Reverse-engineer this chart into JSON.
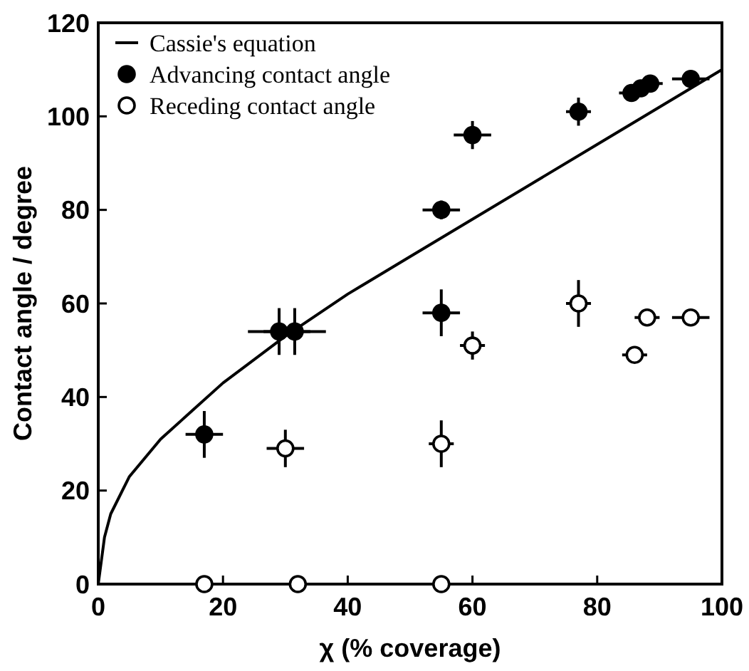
{
  "chart_data": {
    "type": "scatter",
    "xlabel": "χ  (% coverage)",
    "ylabel": "Contact angle / degree",
    "xlim": [
      0,
      100
    ],
    "ylim": [
      0,
      120
    ],
    "xticks": [
      0,
      20,
      40,
      60,
      80,
      100
    ],
    "yticks": [
      0,
      20,
      40,
      60,
      80,
      100,
      120
    ],
    "grid": false,
    "legend": "top left",
    "series": [
      {
        "name": "Cassie's equation",
        "type": "line",
        "color": "#000000",
        "marker": "none",
        "x": [
          0,
          1,
          2,
          5,
          10,
          15,
          20,
          30,
          40,
          50,
          60,
          70,
          80,
          90,
          100
        ],
        "values": [
          0,
          10,
          15,
          23,
          31,
          37,
          43,
          53,
          62,
          70,
          78,
          86,
          94,
          102,
          110
        ]
      },
      {
        "name": "Advancing contact angle",
        "type": "scatter",
        "color": "#000000",
        "marker": "circle",
        "x": [
          17,
          29,
          31.5,
          55,
          55,
          60,
          77,
          85.5,
          87,
          88.5,
          95
        ],
        "values": [
          32,
          54,
          54,
          80,
          58,
          96,
          101,
          105,
          106,
          107,
          108
        ],
        "errors": [
          5,
          5,
          5,
          2,
          5,
          3,
          3,
          null,
          null,
          null,
          null
        ],
        "xerrors": [
          3,
          5,
          5,
          3,
          3,
          3,
          2,
          2,
          2,
          2,
          3
        ]
      },
      {
        "name": "Receding contact angle",
        "type": "scatter",
        "color": "#ffffff",
        "marker": "circle",
        "x": [
          17,
          32,
          55,
          30,
          55,
          60,
          77,
          86,
          88,
          95
        ],
        "values": [
          0,
          0,
          0,
          29,
          30,
          51,
          60,
          49,
          57,
          57
        ],
        "errors": [
          null,
          null,
          null,
          4,
          5,
          3,
          5,
          null,
          null,
          null
        ],
        "xerrors": [
          null,
          null,
          null,
          3,
          2,
          2,
          2,
          2,
          2,
          3
        ]
      }
    ]
  }
}
